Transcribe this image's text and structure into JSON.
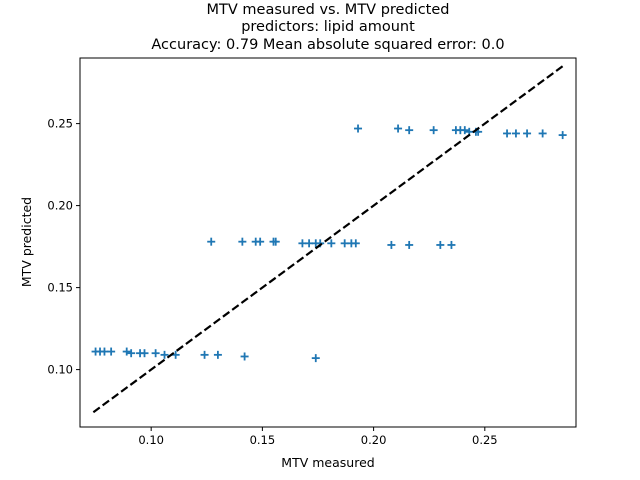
{
  "chart_data": {
    "type": "scatter",
    "title": [
      "MTV measured vs. MTV predicted",
      "predictors: lipid amount",
      "Accuracy: 0.79 Mean absolute squared error: 0.0"
    ],
    "xlabel": "MTV measured",
    "ylabel": "MTV predicted",
    "xlim": [
      0.068,
      0.291
    ],
    "ylim": [
      0.065,
      0.29
    ],
    "xticks": [
      0.1,
      0.15,
      0.2,
      0.25
    ],
    "xtick_labels": [
      "0.10",
      "0.15",
      "0.20",
      "0.25"
    ],
    "yticks": [
      0.1,
      0.15,
      0.2,
      0.25
    ],
    "ytick_labels": [
      "0.10",
      "0.15",
      "0.20",
      "0.25"
    ],
    "grid": false,
    "marker": "+",
    "marker_color": "#1f77b4",
    "reference_line": {
      "x": [
        0.074,
        0.285
      ],
      "y": [
        0.074,
        0.285
      ],
      "style": "dashed",
      "color": "#000000"
    },
    "points": [
      {
        "x": 0.075,
        "y": 0.111
      },
      {
        "x": 0.077,
        "y": 0.111
      },
      {
        "x": 0.079,
        "y": 0.111
      },
      {
        "x": 0.082,
        "y": 0.111
      },
      {
        "x": 0.089,
        "y": 0.111
      },
      {
        "x": 0.091,
        "y": 0.11
      },
      {
        "x": 0.095,
        "y": 0.11
      },
      {
        "x": 0.097,
        "y": 0.11
      },
      {
        "x": 0.102,
        "y": 0.11
      },
      {
        "x": 0.106,
        "y": 0.109
      },
      {
        "x": 0.111,
        "y": 0.109
      },
      {
        "x": 0.124,
        "y": 0.109
      },
      {
        "x": 0.13,
        "y": 0.109
      },
      {
        "x": 0.142,
        "y": 0.108
      },
      {
        "x": 0.174,
        "y": 0.107
      },
      {
        "x": 0.127,
        "y": 0.178
      },
      {
        "x": 0.141,
        "y": 0.178
      },
      {
        "x": 0.147,
        "y": 0.178
      },
      {
        "x": 0.149,
        "y": 0.178
      },
      {
        "x": 0.155,
        "y": 0.178
      },
      {
        "x": 0.156,
        "y": 0.178
      },
      {
        "x": 0.168,
        "y": 0.177
      },
      {
        "x": 0.171,
        "y": 0.177
      },
      {
        "x": 0.174,
        "y": 0.177
      },
      {
        "x": 0.176,
        "y": 0.177
      },
      {
        "x": 0.181,
        "y": 0.177
      },
      {
        "x": 0.187,
        "y": 0.177
      },
      {
        "x": 0.19,
        "y": 0.177
      },
      {
        "x": 0.192,
        "y": 0.177
      },
      {
        "x": 0.208,
        "y": 0.176
      },
      {
        "x": 0.216,
        "y": 0.176
      },
      {
        "x": 0.23,
        "y": 0.176
      },
      {
        "x": 0.235,
        "y": 0.176
      },
      {
        "x": 0.193,
        "y": 0.247
      },
      {
        "x": 0.211,
        "y": 0.247
      },
      {
        "x": 0.216,
        "y": 0.246
      },
      {
        "x": 0.227,
        "y": 0.246
      },
      {
        "x": 0.237,
        "y": 0.246
      },
      {
        "x": 0.239,
        "y": 0.246
      },
      {
        "x": 0.241,
        "y": 0.246
      },
      {
        "x": 0.243,
        "y": 0.245
      },
      {
        "x": 0.246,
        "y": 0.245
      },
      {
        "x": 0.247,
        "y": 0.245
      },
      {
        "x": 0.26,
        "y": 0.244
      },
      {
        "x": 0.264,
        "y": 0.244
      },
      {
        "x": 0.269,
        "y": 0.244
      },
      {
        "x": 0.276,
        "y": 0.244
      },
      {
        "x": 0.285,
        "y": 0.243
      }
    ]
  }
}
